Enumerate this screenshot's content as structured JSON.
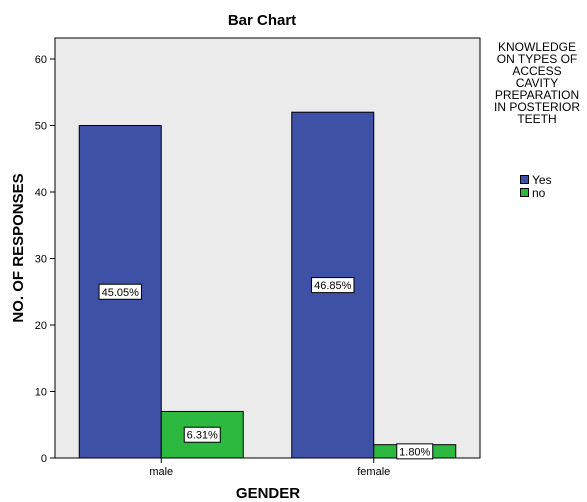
{
  "chart_data": {
    "type": "bar",
    "title": "Bar Chart",
    "xlabel": "GENDER",
    "ylabel": "NO. OF RESPONSES",
    "categories": [
      "male",
      "female"
    ],
    "ylim": [
      0,
      62
    ],
    "yticks": [
      0,
      10,
      20,
      30,
      40,
      50,
      60
    ],
    "legend": {
      "title": "KNOWLEDGE\nON TYPES OF\nACCESS\nCAVITY\nPREPARATION\nIN POSTERIOR\nTEETH",
      "placement": "right"
    },
    "series": [
      {
        "name": "Yes",
        "values": [
          50,
          52
        ],
        "labels": [
          "45.05%",
          "46.85%"
        ],
        "color": "#3F51A6"
      },
      {
        "name": "no",
        "values": [
          7,
          2
        ],
        "labels": [
          "6.31%",
          "1.80%"
        ],
        "color": "#2DB83F"
      }
    ],
    "plot_background": "#EBEBEB",
    "grid": false
  }
}
